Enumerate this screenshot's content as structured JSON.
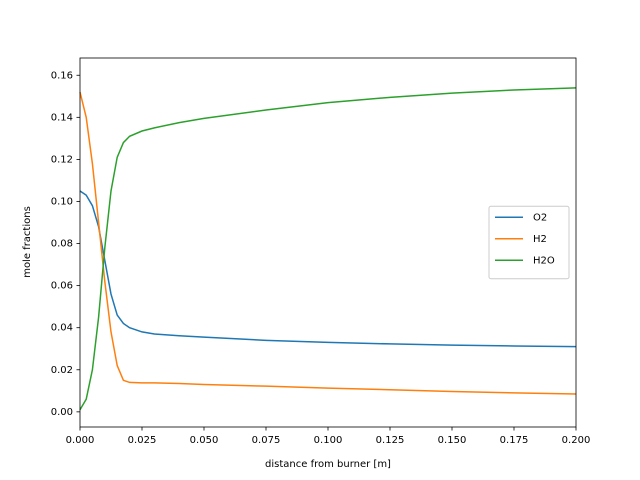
{
  "chart_data": {
    "type": "line",
    "xlabel": "distance from burner [m]",
    "ylabel": "mole fractions",
    "x": [
      0,
      0.0025,
      0.005,
      0.0075,
      0.01,
      0.0125,
      0.015,
      0.0175,
      0.02,
      0.025,
      0.03,
      0.04,
      0.05,
      0.075,
      0.1,
      0.125,
      0.15,
      0.175,
      0.2
    ],
    "series": [
      {
        "name": "O2",
        "color": "#1f77b4",
        "values": [
          0.105,
          0.103,
          0.098,
          0.088,
          0.072,
          0.056,
          0.046,
          0.042,
          0.04,
          0.038,
          0.037,
          0.0362,
          0.0355,
          0.034,
          0.033,
          0.0323,
          0.0317,
          0.0313,
          0.031
        ]
      },
      {
        "name": "H2",
        "color": "#ff7f0e",
        "values": [
          0.152,
          0.14,
          0.118,
          0.09,
          0.062,
          0.038,
          0.022,
          0.015,
          0.014,
          0.0138,
          0.0138,
          0.0135,
          0.013,
          0.0122,
          0.0113,
          0.0105,
          0.0097,
          0.009,
          0.0085
        ]
      },
      {
        "name": "H2O",
        "color": "#2ca02c",
        "values": [
          0.001,
          0.006,
          0.02,
          0.045,
          0.078,
          0.105,
          0.121,
          0.128,
          0.131,
          0.1335,
          0.135,
          0.1375,
          0.1395,
          0.1435,
          0.147,
          0.1495,
          0.1515,
          0.153,
          0.154
        ]
      }
    ],
    "xlim": [
      0,
      0.2
    ],
    "ylim": [
      -0.0072,
      0.1682
    ],
    "xticks": [
      {
        "value": 0,
        "label": "0.000"
      },
      {
        "value": 0.025,
        "label": "0.025"
      },
      {
        "value": 0.05,
        "label": "0.050"
      },
      {
        "value": 0.075,
        "label": "0.075"
      },
      {
        "value": 0.1,
        "label": "0.100"
      },
      {
        "value": 0.125,
        "label": "0.125"
      },
      {
        "value": 0.15,
        "label": "0.150"
      },
      {
        "value": 0.175,
        "label": "0.175"
      },
      {
        "value": 0.2,
        "label": "0.200"
      }
    ],
    "yticks": [
      {
        "value": 0,
        "label": "0.00"
      },
      {
        "value": 0.02,
        "label": "0.02"
      },
      {
        "value": 0.04,
        "label": "0.04"
      },
      {
        "value": 0.06,
        "label": "0.06"
      },
      {
        "value": 0.08,
        "label": "0.08"
      },
      {
        "value": 0.1,
        "label": "0.10"
      },
      {
        "value": 0.12,
        "label": "0.12"
      },
      {
        "value": 0.14,
        "label": "0.14"
      },
      {
        "value": 0.16,
        "label": "0.16"
      }
    ],
    "legend": "center right",
    "grid": false
  }
}
